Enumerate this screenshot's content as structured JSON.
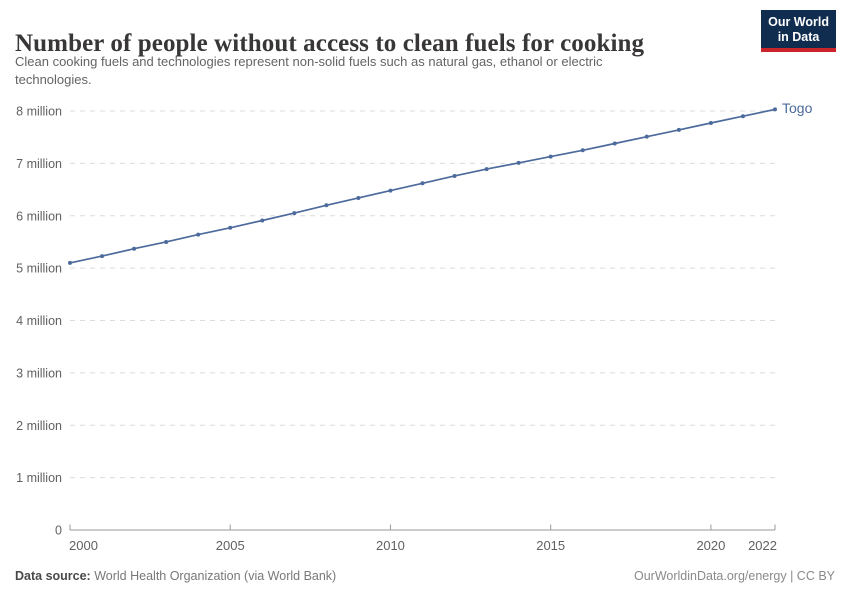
{
  "header": {
    "title": "Number of people without access to clean fuels for cooking",
    "subtitle_lines": [
      "Clean cooking fuels and technologies represent non-solid fuels such as natural gas, ethanol or electric",
      "technologies."
    ],
    "logo": {
      "line1": "Our World",
      "line2": "in Data"
    }
  },
  "chart_data": {
    "type": "line",
    "title": "Number of people without access to clean fuels for cooking",
    "xlabel": "",
    "ylabel": "",
    "xlim": [
      2000,
      2022
    ],
    "ylim": [
      0,
      8000000
    ],
    "grid": "horizontal-dashed",
    "legend_position": "end-of-line-label",
    "unit": "people",
    "x": [
      2000,
      2001,
      2002,
      2003,
      2004,
      2005,
      2006,
      2007,
      2008,
      2009,
      2010,
      2011,
      2012,
      2013,
      2014,
      2015,
      2016,
      2017,
      2018,
      2019,
      2020,
      2021,
      2022
    ],
    "series": [
      {
        "name": "Togo",
        "color": "#4C6A9C",
        "values": [
          5100000,
          5230000,
          5370000,
          5500000,
          5640000,
          5770000,
          5910000,
          6050000,
          6200000,
          6340000,
          6480000,
          6620000,
          6760000,
          6890000,
          7010000,
          7130000,
          7250000,
          7380000,
          7510000,
          7640000,
          7770000,
          7900000,
          8030000
        ]
      }
    ],
    "y_ticks": [
      {
        "value": 0,
        "label": "0"
      },
      {
        "value": 1000000,
        "label": "1 million"
      },
      {
        "value": 2000000,
        "label": "2 million"
      },
      {
        "value": 3000000,
        "label": "3 million"
      },
      {
        "value": 4000000,
        "label": "4 million"
      },
      {
        "value": 5000000,
        "label": "5 million"
      },
      {
        "value": 6000000,
        "label": "6 million"
      },
      {
        "value": 7000000,
        "label": "7 million"
      },
      {
        "value": 8000000,
        "label": "8 million"
      }
    ],
    "x_ticks": [
      2000,
      2005,
      2010,
      2015,
      2020,
      2022
    ]
  },
  "footer": {
    "datasource_label": "Data source:",
    "datasource_value": "World Health Organization (via World Bank)",
    "license": "OurWorldinData.org/energy | CC BY"
  },
  "colors": {
    "series_blue": "#4C6A9C",
    "logo_navy": "#102D50",
    "logo_red": "#C9252B",
    "gridline": "#dcdcdc",
    "axis": "#9a9a9a",
    "tick_text": "#616161"
  }
}
